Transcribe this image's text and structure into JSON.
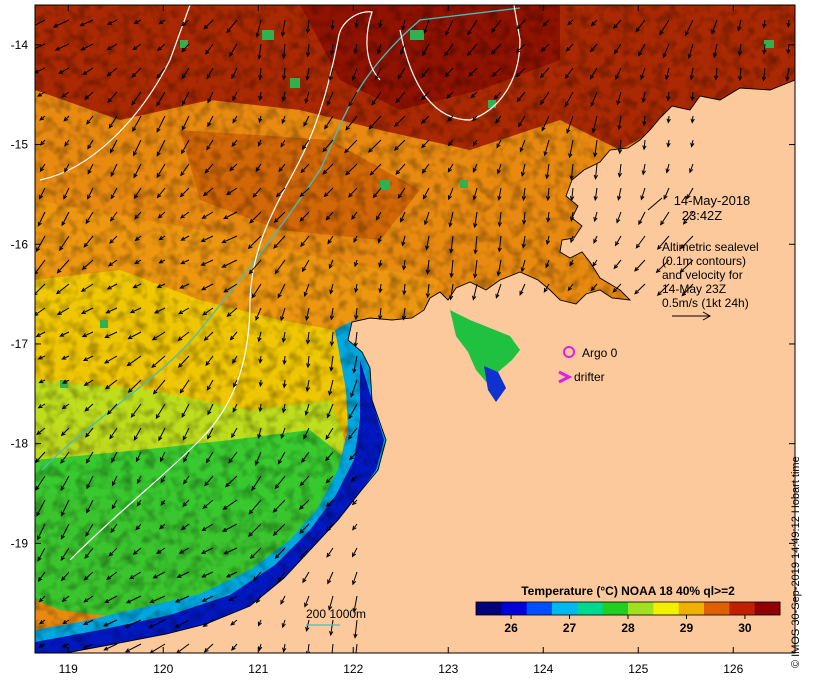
{
  "map": {
    "date": "14-May-2018",
    "time": "23:42Z",
    "legend_lines": [
      "Altimetric sealevel",
      "(0.1m contours)",
      "and velocity for",
      "14-May 23Z",
      "0.5m/s (1kt 24h)"
    ],
    "markers": [
      {
        "label": "Argo 0",
        "symbol": "circle-icon",
        "color": "#e020e0",
        "lon": 124.3,
        "lat": -17.05
      },
      {
        "label": "drifter",
        "symbol": "chevron-icon",
        "color": "#e020e0",
        "lon": 124.25,
        "lat": -17.3
      }
    ],
    "isobath_label": "200  1000m",
    "isobath_colors": {
      "c200": "#40c0c0",
      "c1000": "#ffffff"
    },
    "colorbar": {
      "title": "Temperature (°C) NOAA 18 40% ql>=2",
      "min": 25.4,
      "max": 30.6,
      "ticks": [
        26,
        27,
        28,
        29,
        30
      ],
      "colors": [
        "#00007a",
        "#0000d8",
        "#0050ff",
        "#00b8f0",
        "#00d890",
        "#20d020",
        "#a0e020",
        "#f0f000",
        "#f0b000",
        "#e06000",
        "#c02000",
        "#900000"
      ]
    },
    "axes": {
      "x_ticks": [
        119,
        120,
        121,
        122,
        123,
        124,
        125,
        126
      ],
      "y_ticks": [
        -14,
        -15,
        -16,
        -17,
        -18,
        -19
      ],
      "lon_range": [
        118.65,
        126.65
      ],
      "lat_range": [
        -20.1,
        -13.6
      ]
    },
    "land_color": "#fbc99b",
    "credit": "© IMOS 30-Sep-2019 14:49:12 Hobart time"
  }
}
